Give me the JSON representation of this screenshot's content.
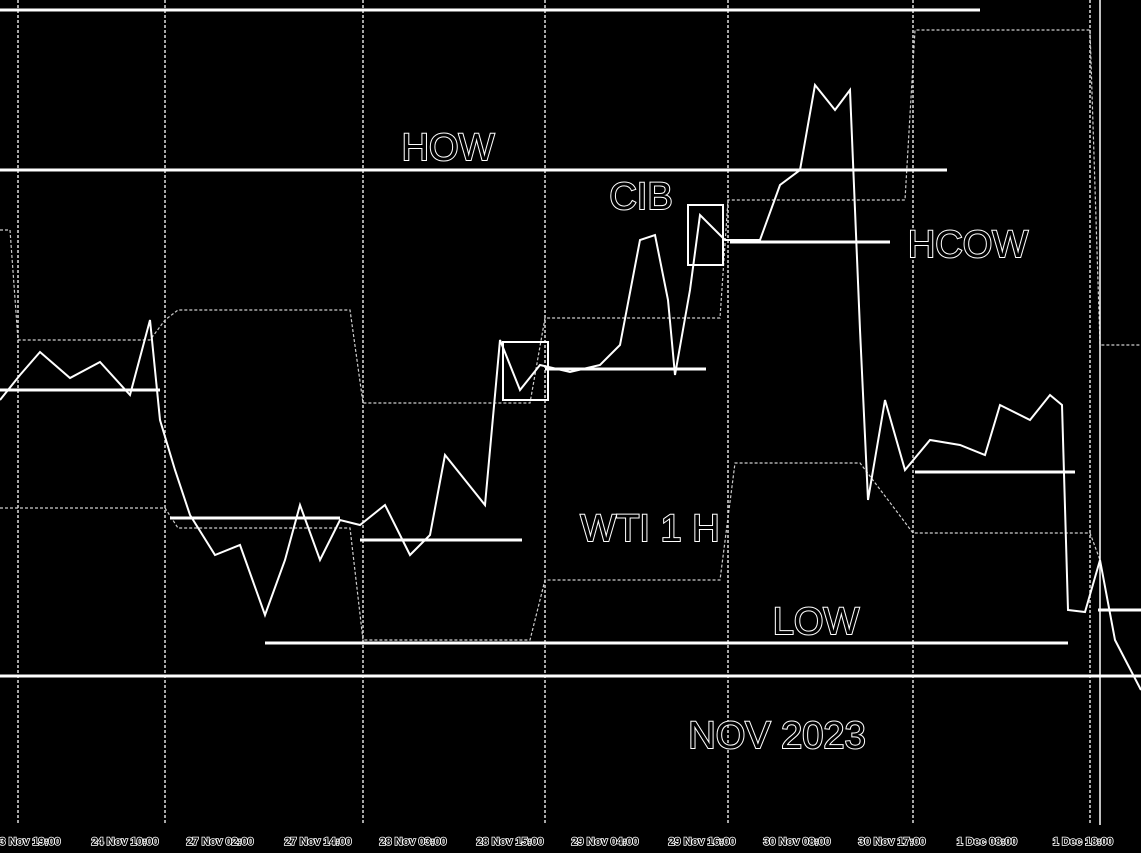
{
  "annotations": {
    "how": "HOW",
    "cib": "CIB",
    "hcow": "HCOW",
    "wti": "WTI 1 H",
    "low": "LOW",
    "month": "NOV 2023"
  },
  "time_labels": [
    "3 Nov 19:00",
    "24 Nov 10:00",
    "27 Nov 02:00",
    "27 Nov 14:00",
    "28 Nov 03:00",
    "28 Nov 15:00",
    "29 Nov 04:00",
    "29 Nov 16:00",
    "30 Nov 08:00",
    "30 Nov 17:00",
    "1 Dec 08:00",
    "1 Dec 18:00"
  ]
}
